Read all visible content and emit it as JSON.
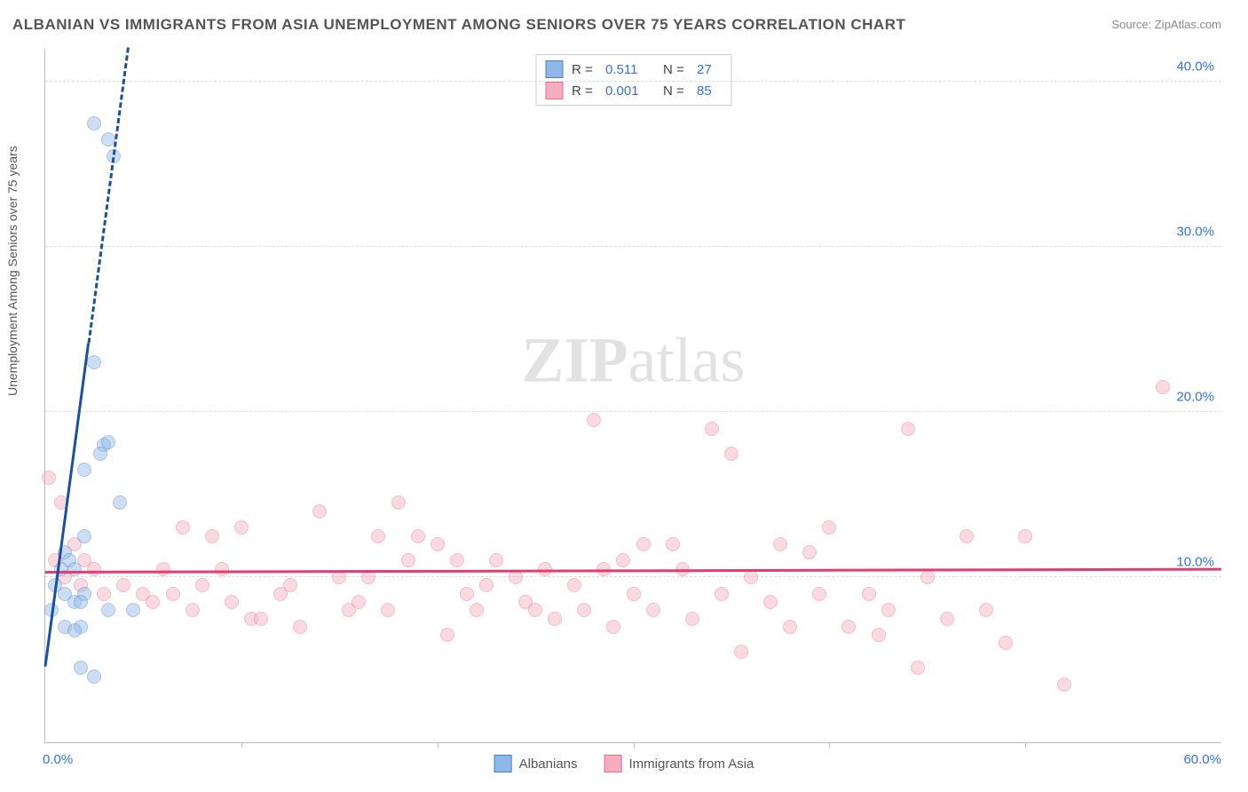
{
  "title": "ALBANIAN VS IMMIGRANTS FROM ASIA UNEMPLOYMENT AMONG SENIORS OVER 75 YEARS CORRELATION CHART",
  "source": "Source: ZipAtlas.com",
  "ylabel": "Unemployment Among Seniors over 75 years",
  "watermark_a": "ZIP",
  "watermark_b": "atlas",
  "chart": {
    "type": "scatter",
    "xlim": [
      0,
      60
    ],
    "ylim": [
      0,
      42
    ],
    "x_ticks_label_min": "0.0%",
    "x_ticks_label_max": "60.0%",
    "x_tick_marks": [
      10,
      20,
      30,
      40,
      50
    ],
    "y_gridlines": [
      10,
      20,
      30,
      40
    ],
    "y_tick_labels": [
      "10.0%",
      "20.0%",
      "30.0%",
      "40.0%"
    ],
    "tick_color_blue": "#3273dc",
    "tick_color_pink": "#d94f7a",
    "grid_color": "#dddddd",
    "axis_color": "#bbbbbb",
    "background_color": "#ffffff",
    "point_radius": 8,
    "point_opacity": 0.45
  },
  "series": {
    "albanians": {
      "label": "Albanians",
      "color_fill": "#8fb8e8",
      "color_stroke": "#4a7fc9",
      "R": "0.511",
      "N": "27",
      "trend": {
        "slope": 8.9,
        "intercept": 4.5,
        "color": "#1c4fa0",
        "width": 3,
        "dash_after_x": 2.2
      },
      "points": [
        [
          2.5,
          37.5
        ],
        [
          3.2,
          36.5
        ],
        [
          3.5,
          35.5
        ],
        [
          2.5,
          23.0
        ],
        [
          3.0,
          18.0
        ],
        [
          3.2,
          18.2
        ],
        [
          2.8,
          17.5
        ],
        [
          2.0,
          16.5
        ],
        [
          3.8,
          14.5
        ],
        [
          2.0,
          12.5
        ],
        [
          1.0,
          11.5
        ],
        [
          1.2,
          11.0
        ],
        [
          0.8,
          10.5
        ],
        [
          1.5,
          10.5
        ],
        [
          0.5,
          9.5
        ],
        [
          1.0,
          9.0
        ],
        [
          2.0,
          9.0
        ],
        [
          0.3,
          8.0
        ],
        [
          1.5,
          8.5
        ],
        [
          1.8,
          8.5
        ],
        [
          3.2,
          8.0
        ],
        [
          4.5,
          8.0
        ],
        [
          1.0,
          7.0
        ],
        [
          1.8,
          7.0
        ],
        [
          1.5,
          6.8
        ],
        [
          1.8,
          4.5
        ],
        [
          2.5,
          4.0
        ]
      ]
    },
    "asia": {
      "label": "Immigrants from Asia",
      "color_fill": "#f5aebe",
      "color_stroke": "#e56d8d",
      "R": "0.001",
      "N": "85",
      "trend": {
        "slope": 0.003,
        "intercept": 10.2,
        "color": "#e23d71",
        "width": 3,
        "dash_after_x": 60
      },
      "points": [
        [
          0.2,
          16.0
        ],
        [
          0.8,
          14.5
        ],
        [
          1.5,
          12.0
        ],
        [
          0.5,
          11.0
        ],
        [
          1.0,
          10.0
        ],
        [
          2.0,
          11.0
        ],
        [
          2.5,
          10.5
        ],
        [
          1.8,
          9.5
        ],
        [
          3.0,
          9.0
        ],
        [
          4.0,
          9.5
        ],
        [
          5.0,
          9.0
        ],
        [
          5.5,
          8.5
        ],
        [
          6.0,
          10.5
        ],
        [
          6.5,
          9.0
        ],
        [
          7.0,
          13.0
        ],
        [
          7.5,
          8.0
        ],
        [
          8.0,
          9.5
        ],
        [
          8.5,
          12.5
        ],
        [
          9.0,
          10.5
        ],
        [
          9.5,
          8.5
        ],
        [
          10.0,
          13.0
        ],
        [
          10.5,
          7.5
        ],
        [
          11.0,
          7.5
        ],
        [
          12.0,
          9.0
        ],
        [
          12.5,
          9.5
        ],
        [
          13.0,
          7.0
        ],
        [
          14.0,
          14.0
        ],
        [
          15.0,
          10.0
        ],
        [
          15.5,
          8.0
        ],
        [
          16.0,
          8.5
        ],
        [
          16.5,
          10.0
        ],
        [
          17.0,
          12.5
        ],
        [
          17.5,
          8.0
        ],
        [
          18.0,
          14.5
        ],
        [
          18.5,
          11.0
        ],
        [
          19.0,
          12.5
        ],
        [
          20.0,
          12.0
        ],
        [
          20.5,
          6.5
        ],
        [
          21.0,
          11.0
        ],
        [
          21.5,
          9.0
        ],
        [
          22.0,
          8.0
        ],
        [
          22.5,
          9.5
        ],
        [
          23.0,
          11.0
        ],
        [
          24.0,
          10.0
        ],
        [
          24.5,
          8.5
        ],
        [
          25.0,
          8.0
        ],
        [
          25.5,
          10.5
        ],
        [
          26.0,
          7.5
        ],
        [
          27.0,
          9.5
        ],
        [
          27.5,
          8.0
        ],
        [
          28.0,
          19.5
        ],
        [
          28.5,
          10.5
        ],
        [
          29.0,
          7.0
        ],
        [
          29.5,
          11.0
        ],
        [
          30.0,
          9.0
        ],
        [
          30.5,
          12.0
        ],
        [
          31.0,
          8.0
        ],
        [
          32.0,
          12.0
        ],
        [
          32.5,
          10.5
        ],
        [
          33.0,
          7.5
        ],
        [
          34.0,
          19.0
        ],
        [
          34.5,
          9.0
        ],
        [
          35.0,
          17.5
        ],
        [
          35.5,
          5.5
        ],
        [
          36.0,
          10.0
        ],
        [
          37.0,
          8.5
        ],
        [
          37.5,
          12.0
        ],
        [
          38.0,
          7.0
        ],
        [
          39.0,
          11.5
        ],
        [
          39.5,
          9.0
        ],
        [
          40.0,
          13.0
        ],
        [
          41.0,
          7.0
        ],
        [
          42.0,
          9.0
        ],
        [
          42.5,
          6.5
        ],
        [
          43.0,
          8.0
        ],
        [
          44.0,
          19.0
        ],
        [
          44.5,
          4.5
        ],
        [
          45.0,
          10.0
        ],
        [
          46.0,
          7.5
        ],
        [
          47.0,
          12.5
        ],
        [
          48.0,
          8.0
        ],
        [
          49.0,
          6.0
        ],
        [
          50.0,
          12.5
        ],
        [
          52.0,
          3.5
        ],
        [
          57.0,
          21.5
        ]
      ]
    }
  },
  "legend_top_labels": {
    "R": "R  =",
    "N": "N  ="
  },
  "title_fontsize": 17,
  "label_fontsize": 14
}
